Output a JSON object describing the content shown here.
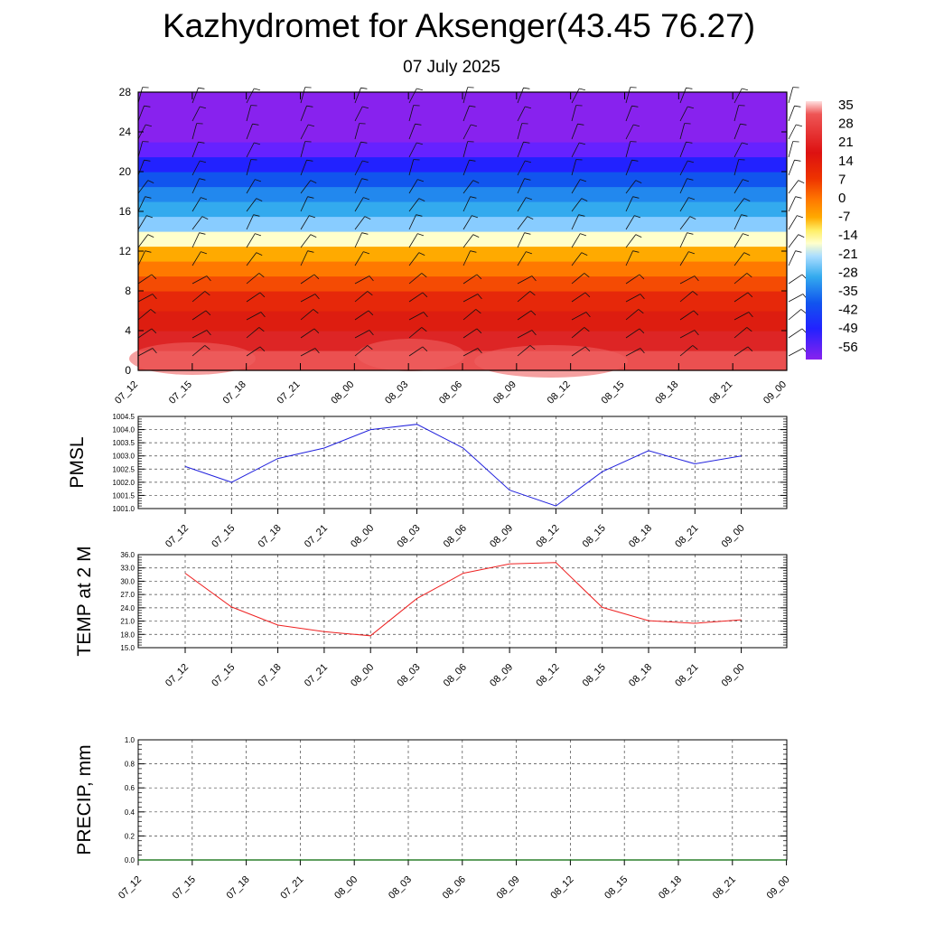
{
  "header": {
    "title": "Kazhydromet for Aksenger(43.45 76.27)",
    "date": "07 July 2025"
  },
  "colors": {
    "pmsl_line": "#2222dd",
    "temp_line": "#ee2222",
    "precip_line": "#006600",
    "grid": "#555555"
  },
  "chart_data": [
    {
      "type": "heatmap",
      "x": [
        "07_12",
        "07_15",
        "07_18",
        "07_21",
        "08_00",
        "08_03",
        "08_06",
        "08_09",
        "08_12",
        "08_15",
        "08_18",
        "08_21",
        "09_00"
      ],
      "y_ticks": [
        "0",
        "4",
        "8",
        "12",
        "16",
        "20",
        "24",
        "28"
      ],
      "ylim": [
        0,
        28
      ],
      "colorbar": {
        "labels": [
          "35",
          "28",
          "21",
          "14",
          "7",
          "0",
          "-7",
          "-14",
          "-21",
          "-28",
          "-35",
          "-42",
          "-49",
          "-56"
        ]
      },
      "bands": [
        {
          "from": 0,
          "to": 2,
          "value": 35
        },
        {
          "from": 2,
          "to": 4,
          "value": 30
        },
        {
          "from": 4,
          "to": 6,
          "value": 25
        },
        {
          "from": 6,
          "to": 8,
          "value": 21
        },
        {
          "from": 8,
          "to": 9.5,
          "value": 17
        },
        {
          "from": 9.5,
          "to": 11,
          "value": 12
        },
        {
          "from": 11,
          "to": 12.5,
          "value": 7
        },
        {
          "from": 12.5,
          "to": 14,
          "value": -7
        },
        {
          "from": 14,
          "to": 15.5,
          "value": -21
        },
        {
          "from": 15.5,
          "to": 17,
          "value": -28
        },
        {
          "from": 17,
          "to": 18.5,
          "value": -35
        },
        {
          "from": 18.5,
          "to": 20,
          "value": -42
        },
        {
          "from": 20,
          "to": 21.5,
          "value": -49
        },
        {
          "from": 21.5,
          "to": 23,
          "value": -56
        },
        {
          "from": 23,
          "to": 28,
          "value": -60
        }
      ]
    },
    {
      "type": "line",
      "ylabel": "PMSL",
      "x": [
        "07_12",
        "07_15",
        "07_18",
        "07_21",
        "08_00",
        "08_03",
        "08_06",
        "08_09",
        "08_12",
        "08_15",
        "08_18",
        "08_21",
        "09_00"
      ],
      "y_ticks": [
        "1001.0",
        "1001.5",
        "1002.0",
        "1002.5",
        "1003.0",
        "1003.5",
        "1004.0",
        "1004.5"
      ],
      "ylim": [
        1001.0,
        1004.5
      ],
      "values": [
        1002.6,
        1002.0,
        1002.9,
        1003.3,
        1004.0,
        1004.2,
        1003.3,
        1001.7,
        1001.1,
        1002.4,
        1003.2,
        1002.7,
        1003.0
      ]
    },
    {
      "type": "line",
      "ylabel": "TEMP at 2 M",
      "x": [
        "07_12",
        "07_15",
        "07_18",
        "07_21",
        "08_00",
        "08_03",
        "08_06",
        "08_09",
        "08_12",
        "08_15",
        "08_18",
        "08_21",
        "09_00"
      ],
      "y_ticks": [
        "15.0",
        "18.0",
        "21.0",
        "24.0",
        "27.0",
        "30.0",
        "33.0",
        "36.0"
      ],
      "ylim": [
        15.0,
        36.0
      ],
      "values": [
        31.8,
        24.2,
        20.1,
        18.6,
        17.7,
        26.1,
        31.8,
        33.9,
        34.2,
        24.1,
        21.1,
        20.5,
        21.3
      ]
    },
    {
      "type": "line",
      "ylabel": "PRECIP, mm",
      "x": [
        "07_12",
        "07_15",
        "07_18",
        "07_21",
        "08_00",
        "08_03",
        "08_06",
        "08_09",
        "08_12",
        "08_15",
        "08_18",
        "08_21",
        "09_00"
      ],
      "y_ticks": [
        "0.0",
        "0.2",
        "0.4",
        "0.6",
        "0.8",
        "1.0"
      ],
      "ylim": [
        0.0,
        1.0
      ],
      "values": [
        0,
        0,
        0,
        0,
        0,
        0,
        0,
        0,
        0,
        0,
        0,
        0,
        0
      ]
    }
  ]
}
